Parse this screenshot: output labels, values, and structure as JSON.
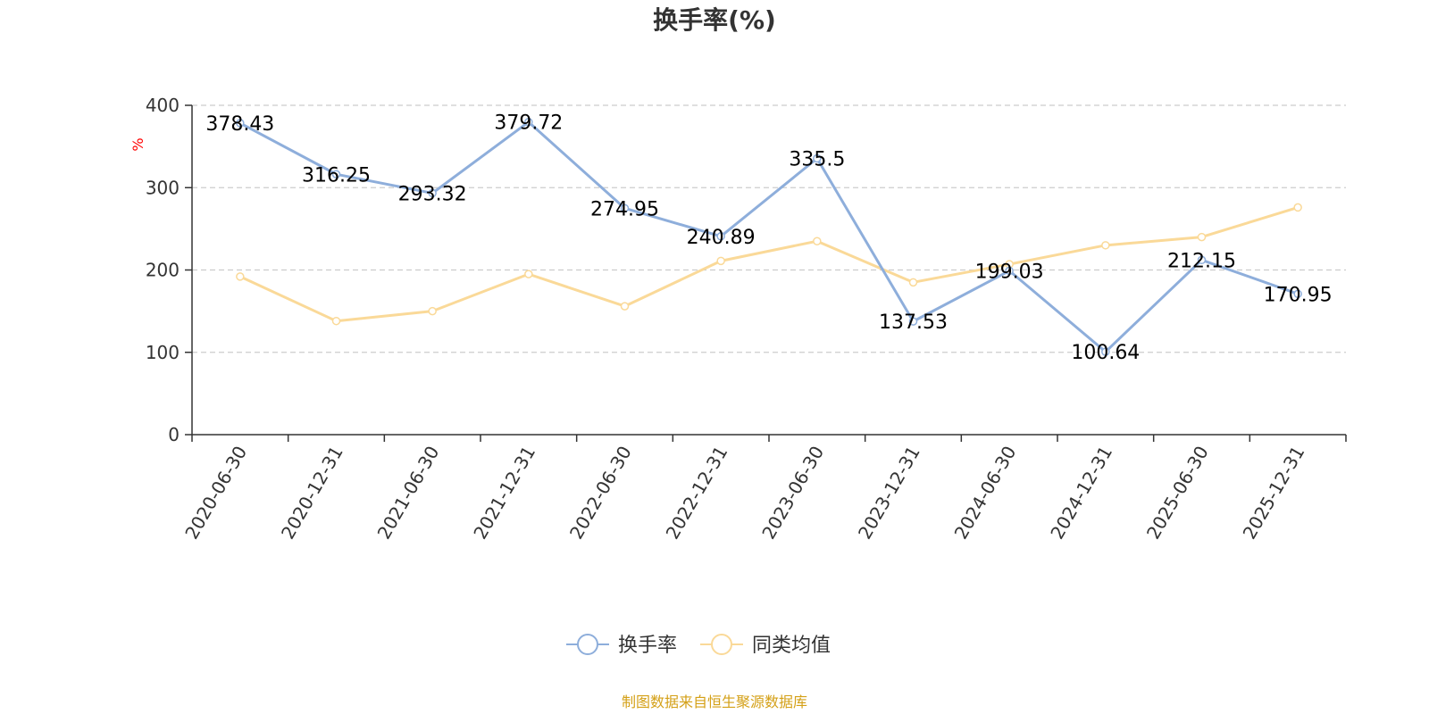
{
  "chart_data": {
    "type": "line",
    "title": "换手率(%)",
    "xlabel": "",
    "ylabel": "%",
    "ylim": [
      0,
      400
    ],
    "yticks": [
      0,
      100,
      200,
      300,
      400
    ],
    "grid": true,
    "legend_position": "bottom",
    "categories": [
      "2020-06-30",
      "2020-12-31",
      "2021-06-30",
      "2021-12-31",
      "2022-06-30",
      "2022-12-31",
      "2023-06-30",
      "2023-12-31",
      "2024-06-30",
      "2024-12-31",
      "2025-06-30",
      "2025-12-31"
    ],
    "series": [
      {
        "name": "换手率",
        "color": "#8eaedb",
        "show_labels": true,
        "labels": [
          "378.43",
          "316.25",
          "293.32",
          "379.72",
          "274.95",
          "240.89",
          "335.5",
          "137.53",
          "199.03",
          "100.64",
          "212.15",
          "170.95"
        ],
        "values": [
          378.43,
          316.25,
          293.32,
          379.72,
          274.95,
          240.89,
          335.5,
          137.53,
          199.03,
          100.64,
          212.15,
          170.95
        ]
      },
      {
        "name": "同类均值",
        "color": "#fad998",
        "show_labels": false,
        "values": [
          192,
          138,
          150,
          195,
          156,
          211,
          235,
          185,
          207,
          230,
          240,
          276
        ]
      }
    ]
  },
  "source_text": "制图数据来自恒生聚源数据库",
  "source_color": "#d4a017"
}
